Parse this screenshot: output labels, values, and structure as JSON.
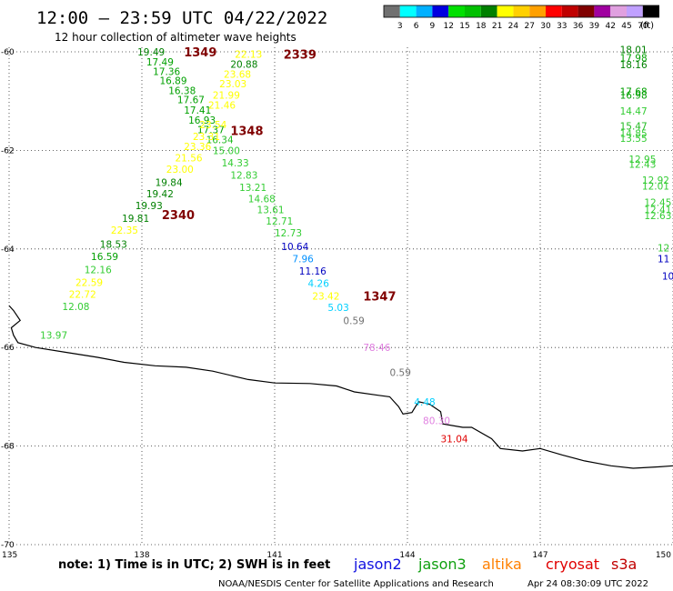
{
  "header": {
    "title": "12:00 – 23:59 UTC 04/22/2022",
    "subtitle": "12 hour collection of altimeter wave heights",
    "unit": "(ft)"
  },
  "legend": {
    "ticks": [
      "3",
      "6",
      "9",
      "12",
      "15",
      "18",
      "21",
      "24",
      "27",
      "30",
      "33",
      "36",
      "39",
      "42",
      "45",
      "70"
    ],
    "colors": [
      "#707070",
      "#00ffff",
      "#00b0ff",
      "#0000e0",
      "#00e000",
      "#00c000",
      "#008000",
      "#ffff00",
      "#ffd000",
      "#ffa000",
      "#ff0000",
      "#c00000",
      "#800000",
      "#a000a0",
      "#e0a0e0",
      "#c0a0ff",
      "#000000"
    ]
  },
  "axes": {
    "lat_ticks": [
      "-60",
      "-62",
      "-64",
      "-66",
      "-68",
      "-70"
    ],
    "lon_ticks": [
      "135",
      "138",
      "141",
      "144",
      "147",
      "150"
    ]
  },
  "footer": {
    "note": "note:  1) Time is in UTC;  2) SWH is in feet",
    "satellites": [
      {
        "name": "jason2",
        "color": "#1010e0"
      },
      {
        "name": "jason3",
        "color": "#10a010"
      },
      {
        "name": "altika",
        "color": "#ff8000"
      },
      {
        "name": "cryosat",
        "color": "#e00000"
      },
      {
        "name": "s3a",
        "color": "#c00000"
      }
    ],
    "credit": "NOAA/NESDIS Center for Satellite Applications and Research",
    "timestamp": "Apr 24 08:30:09 UTC 2022"
  },
  "pass_ids": [
    {
      "label": "1349",
      "lon": 138.95,
      "lat": -60.0
    },
    {
      "label": "2339",
      "lon": 141.2,
      "lat": -60.05
    },
    {
      "label": "1348",
      "lon": 140.0,
      "lat": -61.6
    },
    {
      "label": "2340",
      "lon": 138.45,
      "lat": -63.3
    },
    {
      "label": "1347",
      "lon": 143.0,
      "lat": -64.95
    }
  ],
  "wave_heights": [
    {
      "v": "19.49",
      "lon": 137.9,
      "lat": -60.0,
      "c": "#008000"
    },
    {
      "v": "17.49",
      "lon": 138.1,
      "lat": -60.2,
      "c": "#00a000"
    },
    {
      "v": "17.36",
      "lon": 138.25,
      "lat": -60.4,
      "c": "#00a000"
    },
    {
      "v": "16.89",
      "lon": 138.4,
      "lat": -60.58,
      "c": "#00a000"
    },
    {
      "v": "16.38",
      "lon": 138.6,
      "lat": -60.78,
      "c": "#00a000"
    },
    {
      "v": "17.67",
      "lon": 138.8,
      "lat": -60.97,
      "c": "#00a000"
    },
    {
      "v": "17.41",
      "lon": 138.95,
      "lat": -61.18,
      "c": "#00a000"
    },
    {
      "v": "16.93",
      "lon": 139.05,
      "lat": -61.38,
      "c": "#00a000"
    },
    {
      "v": "17.37",
      "lon": 139.25,
      "lat": -61.58,
      "c": "#00a000"
    },
    {
      "v": "16.34",
      "lon": 139.45,
      "lat": -61.78,
      "c": "#22bb22"
    },
    {
      "v": "15.00",
      "lon": 139.6,
      "lat": -62.0,
      "c": "#33cc33"
    },
    {
      "v": "14.33",
      "lon": 139.8,
      "lat": -62.25,
      "c": "#33cc33"
    },
    {
      "v": "12.83",
      "lon": 140.0,
      "lat": -62.5,
      "c": "#33cc33"
    },
    {
      "v": "13.21",
      "lon": 140.2,
      "lat": -62.75,
      "c": "#33cc33"
    },
    {
      "v": "14.68",
      "lon": 140.4,
      "lat": -62.98,
      "c": "#33cc33"
    },
    {
      "v": "13.61",
      "lon": 140.6,
      "lat": -63.2,
      "c": "#33cc33"
    },
    {
      "v": "12.71",
      "lon": 140.8,
      "lat": -63.43,
      "c": "#33cc33"
    },
    {
      "v": "12.73",
      "lon": 141.0,
      "lat": -63.67,
      "c": "#33cc33"
    },
    {
      "v": "10.64",
      "lon": 141.15,
      "lat": -63.95,
      "c": "#0000c0"
    },
    {
      "v": "7.96",
      "lon": 141.4,
      "lat": -64.2,
      "c": "#0090ff"
    },
    {
      "v": "11.16",
      "lon": 141.55,
      "lat": -64.45,
      "c": "#0000c0"
    },
    {
      "v": "4.26",
      "lon": 141.75,
      "lat": -64.7,
      "c": "#00d0ff"
    },
    {
      "v": "23.42",
      "lon": 141.85,
      "lat": -64.95,
      "c": "#ffff00"
    },
    {
      "v": "5.03",
      "lon": 142.2,
      "lat": -65.18,
      "c": "#00d0ff"
    },
    {
      "v": "0.59",
      "lon": 142.55,
      "lat": -65.45,
      "c": "#707070"
    },
    {
      "v": "78.46",
      "lon": 143.0,
      "lat": -66.0,
      "c": "#e080e0"
    },
    {
      "v": "0.59",
      "lon": 143.6,
      "lat": -66.5,
      "c": "#707070"
    },
    {
      "v": "4.48",
      "lon": 144.15,
      "lat": -67.1,
      "c": "#00d0ff"
    },
    {
      "v": "80.30",
      "lon": 144.35,
      "lat": -67.48,
      "c": "#e080e0"
    },
    {
      "v": "31.04",
      "lon": 144.75,
      "lat": -67.85,
      "c": "#e00000"
    },
    {
      "v": "22.13",
      "lon": 140.1,
      "lat": -60.05,
      "c": "#ffff00"
    },
    {
      "v": "20.88",
      "lon": 140.0,
      "lat": -60.25,
      "c": "#008000"
    },
    {
      "v": "23.68",
      "lon": 139.85,
      "lat": -60.45,
      "c": "#ffff00"
    },
    {
      "v": "23.03",
      "lon": 139.75,
      "lat": -60.65,
      "c": "#ffff00"
    },
    {
      "v": "21.99",
      "lon": 139.6,
      "lat": -60.88,
      "c": "#ffff00"
    },
    {
      "v": "21.46",
      "lon": 139.5,
      "lat": -61.08,
      "c": "#ffff00"
    },
    {
      "v": "23.54",
      "lon": 139.3,
      "lat": -61.48,
      "c": "#ffff00"
    },
    {
      "v": "23.31",
      "lon": 139.15,
      "lat": -61.72,
      "c": "#ffff00"
    },
    {
      "v": "23.36",
      "lon": 138.95,
      "lat": -61.92,
      "c": "#ffff00"
    },
    {
      "v": "21.56",
      "lon": 138.75,
      "lat": -62.15,
      "c": "#ffff00"
    },
    {
      "v": "23.00",
      "lon": 138.55,
      "lat": -62.38,
      "c": "#ffff00"
    },
    {
      "v": "19.84",
      "lon": 138.3,
      "lat": -62.65,
      "c": "#008000"
    },
    {
      "v": "19.42",
      "lon": 138.1,
      "lat": -62.88,
      "c": "#008000"
    },
    {
      "v": "19.93",
      "lon": 137.85,
      "lat": -63.12,
      "c": "#008000"
    },
    {
      "v": "19.81",
      "lon": 137.55,
      "lat": -63.38,
      "c": "#008000"
    },
    {
      "v": "22.35",
      "lon": 137.3,
      "lat": -63.62,
      "c": "#ffff00"
    },
    {
      "v": "18.53",
      "lon": 137.05,
      "lat": -63.9,
      "c": "#008000"
    },
    {
      "v": "16.59",
      "lon": 136.85,
      "lat": -64.15,
      "c": "#00a000"
    },
    {
      "v": "12.16",
      "lon": 136.7,
      "lat": -64.42,
      "c": "#33cc33"
    },
    {
      "v": "22.59",
      "lon": 136.5,
      "lat": -64.68,
      "c": "#ffff00"
    },
    {
      "v": "22.72",
      "lon": 136.35,
      "lat": -64.92,
      "c": "#ffff00"
    },
    {
      "v": "12.08",
      "lon": 136.2,
      "lat": -65.17,
      "c": "#33cc33"
    },
    {
      "v": "13.97",
      "lon": 135.7,
      "lat": -65.75,
      "c": "#33cc33"
    },
    {
      "v": "18.01",
      "lon": 148.8,
      "lat": -59.95,
      "c": "#008000"
    },
    {
      "v": "17.98",
      "lon": 148.8,
      "lat": -60.12,
      "c": "#00a000"
    },
    {
      "v": "18.16",
      "lon": 148.8,
      "lat": -60.26,
      "c": "#008000"
    },
    {
      "v": "17.68",
      "lon": 148.8,
      "lat": -60.8,
      "c": "#00a000"
    },
    {
      "v": "16.98",
      "lon": 148.8,
      "lat": -60.88,
      "c": "#00a000"
    },
    {
      "v": "14.47",
      "lon": 148.8,
      "lat": -61.2,
      "c": "#33cc33"
    },
    {
      "v": "15.47",
      "lon": 148.8,
      "lat": -61.5,
      "c": "#22bb22"
    },
    {
      "v": "14.85",
      "lon": 148.8,
      "lat": -61.65,
      "c": "#33cc33"
    },
    {
      "v": "13.55",
      "lon": 148.8,
      "lat": -61.75,
      "c": "#33cc33"
    },
    {
      "v": "12.95",
      "lon": 149.0,
      "lat": -62.18,
      "c": "#33cc33"
    },
    {
      "v": "12.43",
      "lon": 149.0,
      "lat": -62.28,
      "c": "#33cc33"
    },
    {
      "v": "12.92",
      "lon": 149.3,
      "lat": -62.6,
      "c": "#33cc33"
    },
    {
      "v": "12.01",
      "lon": 149.3,
      "lat": -62.72,
      "c": "#33cc33"
    },
    {
      "v": "12.45",
      "lon": 149.35,
      "lat": -63.05,
      "c": "#33cc33"
    },
    {
      "v": "12.41",
      "lon": 149.35,
      "lat": -63.2,
      "c": "#33cc33"
    },
    {
      "v": "12.63",
      "lon": 149.35,
      "lat": -63.32,
      "c": "#33cc33"
    },
    {
      "v": "12",
      "lon": 149.65,
      "lat": -63.98,
      "c": "#33cc33"
    },
    {
      "v": "11",
      "lon": 149.65,
      "lat": -64.2,
      "c": "#0000c0"
    },
    {
      "v": "10",
      "lon": 149.75,
      "lat": -64.55,
      "c": "#0000c0"
    }
  ],
  "coastline": [
    [
      135.0,
      -65.15
    ],
    [
      135.1,
      -65.25
    ],
    [
      135.25,
      -65.45
    ],
    [
      135.05,
      -65.6
    ],
    [
      135.1,
      -65.75
    ],
    [
      135.2,
      -65.9
    ],
    [
      135.6,
      -66.0
    ],
    [
      136.3,
      -66.1
    ],
    [
      137.0,
      -66.2
    ],
    [
      137.6,
      -66.3
    ],
    [
      138.3,
      -66.37
    ],
    [
      139.0,
      -66.4
    ],
    [
      139.6,
      -66.48
    ],
    [
      140.4,
      -66.65
    ],
    [
      141.0,
      -66.72
    ],
    [
      141.8,
      -66.73
    ],
    [
      142.4,
      -66.78
    ],
    [
      142.8,
      -66.9
    ],
    [
      143.35,
      -66.97
    ],
    [
      143.6,
      -67.0
    ],
    [
      143.8,
      -67.2
    ],
    [
      143.9,
      -67.35
    ],
    [
      144.1,
      -67.32
    ],
    [
      144.25,
      -67.1
    ],
    [
      144.5,
      -67.15
    ],
    [
      144.75,
      -67.3
    ],
    [
      144.8,
      -67.55
    ],
    [
      145.25,
      -67.62
    ],
    [
      145.45,
      -67.62
    ],
    [
      145.9,
      -67.85
    ],
    [
      146.1,
      -68.05
    ],
    [
      146.6,
      -68.1
    ],
    [
      147.0,
      -68.05
    ],
    [
      147.5,
      -68.18
    ],
    [
      148.0,
      -68.3
    ],
    [
      148.6,
      -68.4
    ],
    [
      149.1,
      -68.45
    ],
    [
      149.7,
      -68.42
    ],
    [
      150.0,
      -68.4
    ]
  ]
}
